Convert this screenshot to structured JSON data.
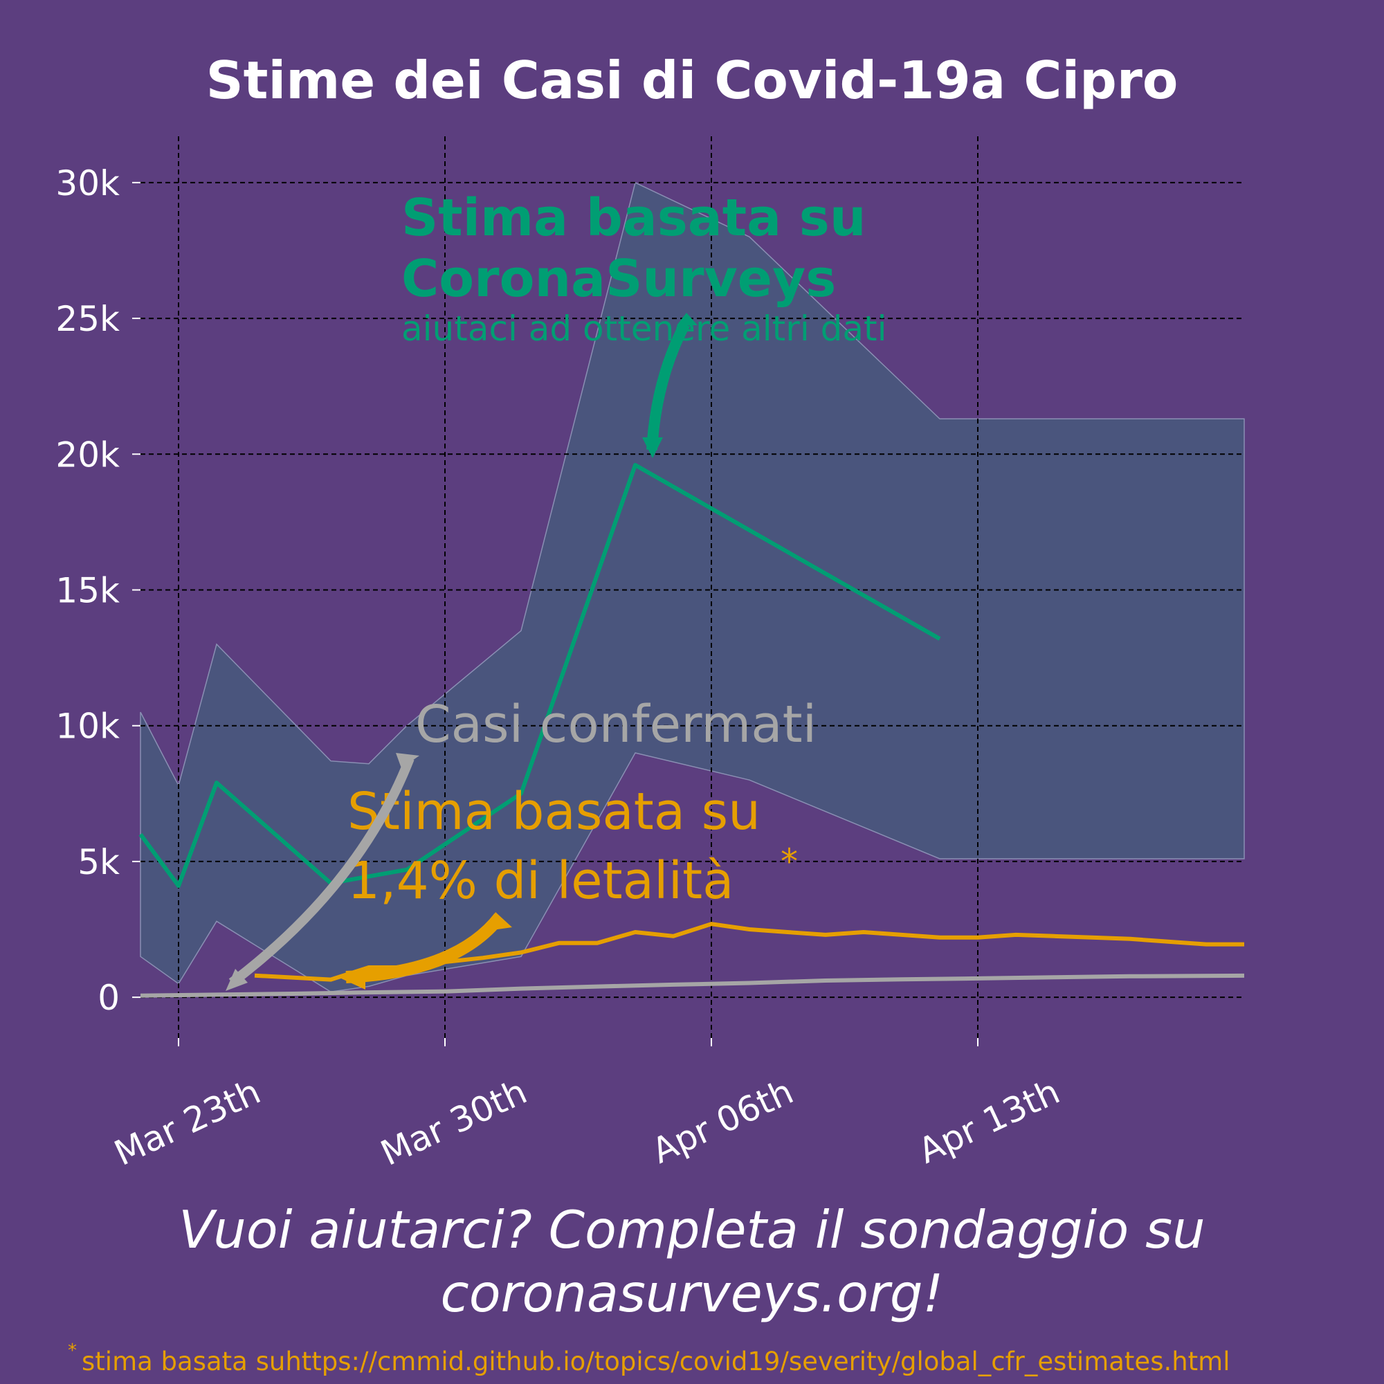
{
  "colors": {
    "background": "#5c3e7f",
    "band": "#4a557d",
    "band_edge": "#8a8fb3",
    "survey": "#009e73",
    "cfr": "#e69f00",
    "confirmed": "#a6a6a6",
    "grid": "#000000",
    "text": "#ffffff"
  },
  "chart_data": {
    "type": "line",
    "title": "Stime dei Casi di Covid-19a Cipro",
    "xlabel": "",
    "ylabel": "",
    "x_domain": [
      "2020-03-22",
      "2020-04-20"
    ],
    "ylim": [
      -1500,
      31500
    ],
    "grid": true,
    "x_ticks": [
      {
        "date": "2020-03-23",
        "label": "Mar 23th"
      },
      {
        "date": "2020-03-30",
        "label": "Mar 30th"
      },
      {
        "date": "2020-04-06",
        "label": "Apr 06th"
      },
      {
        "date": "2020-04-13",
        "label": "Apr 13th"
      }
    ],
    "y_ticks": [
      {
        "value": 0,
        "label": "0"
      },
      {
        "value": 5000,
        "label": "5k"
      },
      {
        "value": 10000,
        "label": "10k"
      },
      {
        "value": 15000,
        "label": "15k"
      },
      {
        "value": 20000,
        "label": "20k"
      },
      {
        "value": 25000,
        "label": "25k"
      },
      {
        "value": 30000,
        "label": "30k"
      }
    ],
    "band": {
      "x": [
        "2020-03-22",
        "2020-03-23",
        "2020-03-24",
        "2020-03-27",
        "2020-03-28",
        "2020-03-29",
        "2020-04-01",
        "2020-04-04",
        "2020-04-07",
        "2020-04-12",
        "2020-04-20"
      ],
      "upper": [
        10500,
        7800,
        13000,
        8700,
        8600,
        10000,
        13500,
        30000,
        28000,
        21300,
        21300
      ],
      "lower": [
        1500,
        500,
        2800,
        200,
        400,
        800,
        1500,
        9000,
        8000,
        5100,
        5100
      ]
    },
    "series": [
      {
        "key": "survey",
        "x": [
          "2020-03-22",
          "2020-03-23",
          "2020-03-24",
          "2020-03-27",
          "2020-03-29",
          "2020-04-01",
          "2020-04-04",
          "2020-04-12"
        ],
        "values": [
          6000,
          4100,
          7900,
          4200,
          4700,
          7500,
          19600,
          13200
        ]
      },
      {
        "key": "cfr",
        "x": [
          "2020-03-25",
          "2020-03-27",
          "2020-03-28",
          "2020-03-29",
          "2020-03-30",
          "2020-03-31",
          "2020-04-01",
          "2020-04-02",
          "2020-04-03",
          "2020-04-04",
          "2020-04-05",
          "2020-04-06",
          "2020-04-07",
          "2020-04-08",
          "2020-04-09",
          "2020-04-10",
          "2020-04-11",
          "2020-04-12",
          "2020-04-13",
          "2020-04-14",
          "2020-04-15",
          "2020-04-16",
          "2020-04-17",
          "2020-04-18",
          "2020-04-19",
          "2020-04-20"
        ],
        "values": [
          800,
          650,
          1100,
          1100,
          1300,
          1450,
          1650,
          2000,
          2000,
          2400,
          2250,
          2700,
          2500,
          2400,
          2300,
          2400,
          2300,
          2200,
          2200,
          2300,
          2250,
          2200,
          2150,
          2050,
          1950,
          1950
        ]
      },
      {
        "key": "confirmed",
        "x": [
          "2020-03-22",
          "2020-03-24",
          "2020-03-26",
          "2020-03-28",
          "2020-03-30",
          "2020-04-01",
          "2020-04-03",
          "2020-04-05",
          "2020-04-07",
          "2020-04-09",
          "2020-04-11",
          "2020-04-13",
          "2020-04-15",
          "2020-04-17",
          "2020-04-20"
        ],
        "values": [
          62,
          95,
          132,
          179,
          214,
          320,
          396,
          465,
          526,
          616,
          662,
          695,
          735,
          772,
          795
        ]
      }
    ]
  },
  "annotations": {
    "survey_line1": "Stima basata su",
    "survey_line2": "CoronaSurveys",
    "survey_sub": "aiutaci ad ottenere altri dati",
    "confirmed": "Casi confermati",
    "cfr_line1": "Stima basata su",
    "cfr_line2": "1,4% di letalità",
    "cfr_star": "*"
  },
  "footer": {
    "cta_line1": "Vuoi aiutarci? Completa il sondaggio su",
    "cta_line2": "coronasurveys.org!",
    "footnote_star": "*",
    "footnote_text": "stima basata suhttps://cmmid.github.io/topics/covid19/severity/global_cfr_estimates.html"
  }
}
